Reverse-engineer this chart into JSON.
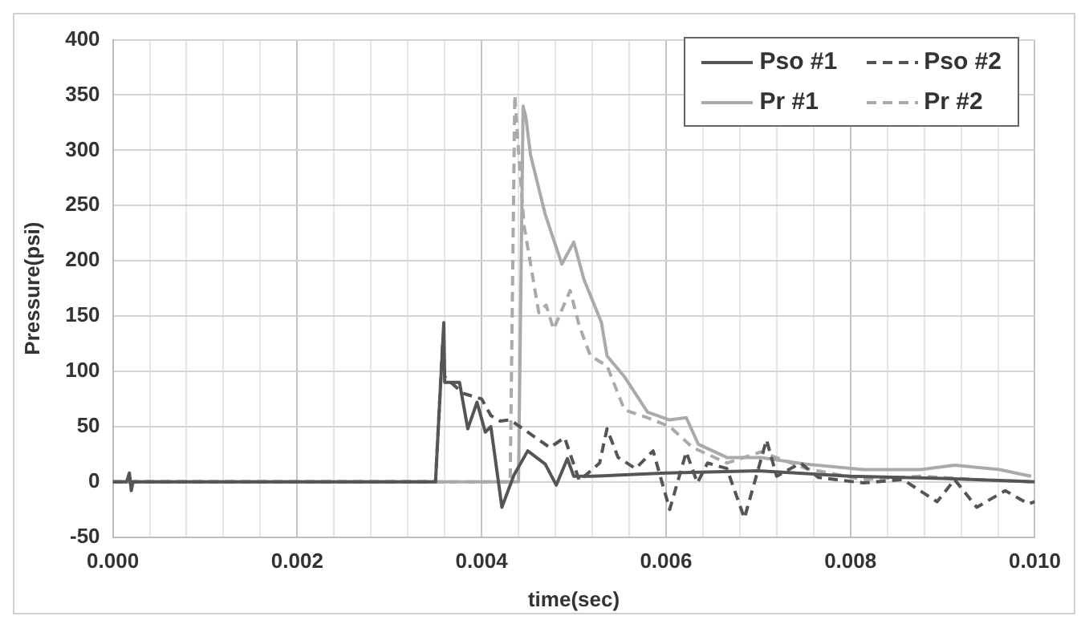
{
  "chart_data": {
    "type": "line",
    "xlabel": "time(sec)",
    "ylabel": "Pressure(psi)",
    "xlim": [
      0,
      0.01
    ],
    "ylim": [
      -50,
      400
    ],
    "xticks": [
      {
        "value": 0,
        "label": "0.000"
      },
      {
        "value": 0.0004,
        "label": null
      },
      {
        "value": 0.0008,
        "label": null
      },
      {
        "value": 0.0012,
        "label": null
      },
      {
        "value": 0.0016,
        "label": null
      },
      {
        "value": 0.002,
        "label": "0.002"
      },
      {
        "value": 0.0024,
        "label": null
      },
      {
        "value": 0.0028,
        "label": null
      },
      {
        "value": 0.0032,
        "label": null
      },
      {
        "value": 0.0036,
        "label": null
      },
      {
        "value": 0.004,
        "label": "0.004"
      },
      {
        "value": 0.0044,
        "label": null
      },
      {
        "value": 0.0048,
        "label": null
      },
      {
        "value": 0.0052,
        "label": null
      },
      {
        "value": 0.0056,
        "label": null
      },
      {
        "value": 0.006,
        "label": "0.006"
      },
      {
        "value": 0.0064,
        "label": null
      },
      {
        "value": 0.0068,
        "label": null
      },
      {
        "value": 0.0072,
        "label": null
      },
      {
        "value": 0.0076,
        "label": null
      },
      {
        "value": 0.008,
        "label": "0.008"
      },
      {
        "value": 0.0084,
        "label": null
      },
      {
        "value": 0.0088,
        "label": null
      },
      {
        "value": 0.0092,
        "label": null
      },
      {
        "value": 0.0096,
        "label": null
      },
      {
        "value": 0.01,
        "label": "0.010"
      }
    ],
    "yticks": [
      -50,
      0,
      50,
      100,
      150,
      200,
      250,
      300,
      350,
      400
    ],
    "grid": true,
    "legend": "top right",
    "marker": "none",
    "series": [
      {
        "name": "Pso #1",
        "color": "#555555",
        "line_style": "solid",
        "x": [
          0,
          0.00015,
          0.00018,
          0.0002,
          0.00022,
          0.0035,
          0.00359,
          0.0036,
          0.00376,
          0.00385,
          0.00395,
          0.00404,
          0.0041,
          0.00422,
          0.00435,
          0.0045,
          0.00469,
          0.00481,
          0.00493,
          0.005,
          0.0052,
          0.006,
          0.007,
          0.008,
          0.009,
          0.01
        ],
        "values": [
          0,
          0,
          8,
          -8,
          0,
          0,
          144,
          90,
          90,
          48,
          72,
          45,
          50,
          -23,
          6,
          28,
          16,
          -3,
          21,
          5,
          5,
          8,
          10,
          5,
          3,
          0
        ]
      },
      {
        "name": "Pso #2",
        "color": "#555555",
        "line_style": "dashed",
        "x": [
          0,
          0.0035,
          0.00358,
          0.0036,
          0.0038,
          0.004,
          0.0041,
          0.0042,
          0.00431,
          0.0045,
          0.00474,
          0.0049,
          0.00506,
          0.00528,
          0.00536,
          0.00548,
          0.00567,
          0.00586,
          0.00604,
          0.00622,
          0.00634,
          0.00645,
          0.00666,
          0.00685,
          0.00709,
          0.0072,
          0.00746,
          0.00765,
          0.00814,
          0.00857,
          0.00894,
          0.00913,
          0.00937,
          0.00968,
          0.00993,
          0.01
        ],
        "values": [
          0,
          0,
          130,
          95,
          80,
          75,
          60,
          55,
          56,
          45,
          31,
          40,
          1,
          17,
          48,
          22,
          12,
          28,
          -25,
          27,
          -1,
          17,
          12,
          -33,
          38,
          5,
          17,
          4,
          -1,
          2,
          -18,
          2,
          -23,
          -8,
          -20,
          -18
        ]
      },
      {
        "name": "Pr #1",
        "color": "#aaaaaa",
        "line_style": "solid",
        "x": [
          0,
          0.0044,
          0.00441,
          0.00445,
          0.00448,
          0.00453,
          0.00469,
          0.00487,
          0.005,
          0.00511,
          0.0053,
          0.00536,
          0.00555,
          0.0058,
          0.00604,
          0.00622,
          0.00635,
          0.00666,
          0.00703,
          0.00752,
          0.00814,
          0.00876,
          0.00913,
          0.00962,
          0.00996
        ],
        "values": [
          0,
          0,
          0,
          340,
          330,
          296,
          242,
          197,
          217,
          183,
          144,
          114,
          95,
          63,
          56,
          58,
          34,
          22,
          22,
          16,
          11,
          11,
          15,
          11,
          5
        ]
      },
      {
        "name": "Pr #2",
        "color": "#aaaaaa",
        "line_style": "dashed",
        "x": [
          0,
          0.0043,
          0.00431,
          0.00436,
          0.0044,
          0.00446,
          0.00462,
          0.0047,
          0.00478,
          0.00496,
          0.00506,
          0.00518,
          0.00536,
          0.00555,
          0.0058,
          0.00604,
          0.00629,
          0.00666,
          0.00703,
          0.00752,
          0.00814,
          0.00876,
          0.00937,
          0.00996
        ],
        "values": [
          0,
          0,
          0,
          350,
          300,
          232,
          153,
          160,
          138,
          173,
          141,
          114,
          105,
          65,
          58,
          50,
          31,
          17,
          27,
          12,
          2,
          5,
          2,
          0
        ]
      }
    ]
  }
}
